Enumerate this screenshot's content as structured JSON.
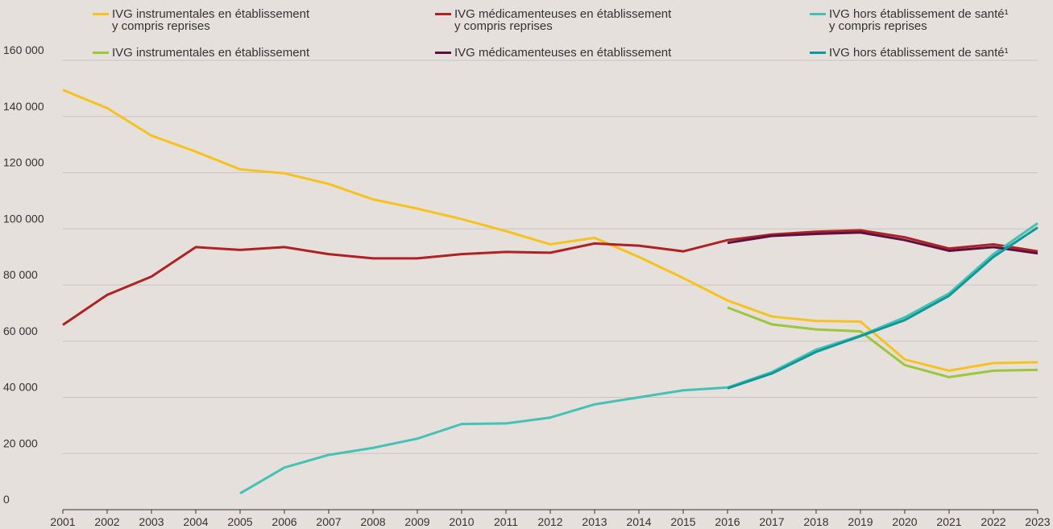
{
  "chart_data": {
    "type": "line",
    "categories": [
      "2001",
      "2002",
      "2003",
      "2004",
      "2005",
      "2006",
      "2007",
      "2008",
      "2009",
      "2010",
      "2011",
      "2012",
      "2013",
      "2014",
      "2015",
      "2016",
      "2017",
      "2018",
      "2019",
      "2020",
      "2021",
      "2022",
      "2023"
    ],
    "ylim": [
      0,
      160000
    ],
    "yticks": [
      0,
      {
        "value": 20000,
        "label": "20 000"
      },
      {
        "value": 40000,
        "label": "40 000"
      },
      {
        "value": 60000,
        "label": "60 000"
      },
      {
        "value": 80000,
        "label": "80 000"
      },
      {
        "value": 100000,
        "label": "100 000"
      },
      {
        "value": 120000,
        "label": "120 000"
      },
      {
        "value": 140000,
        "label": "140 000"
      },
      {
        "value": 160000,
        "label": "160 000"
      }
    ],
    "grid": true,
    "series": [
      {
        "name": "IVG instrumentales en établissement\ny compris reprises",
        "color": "#f7c11e",
        "values": [
          149500,
          143000,
          133200,
          127500,
          121200,
          119800,
          116000,
          110500,
          107200,
          103500,
          99200,
          94500,
          96800,
          90000,
          82500,
          74500,
          68800,
          67200,
          67000,
          53500,
          49500,
          52200,
          52500
        ]
      },
      {
        "name": "IVG médicamenteuses en établissement\ny compris reprises",
        "color": "#b02126",
        "values": [
          65800,
          76500,
          83000,
          93500,
          92500,
          93500,
          91000,
          89500,
          89500,
          91000,
          91800,
          91500,
          94800,
          94000,
          92000,
          96000,
          98000,
          99000,
          99500,
          97000,
          93000,
          94500,
          92000
        ]
      },
      {
        "name": "IVG hors établissement de santé¹\ny compris reprises",
        "color": "#45c1b5",
        "values": [
          null,
          null,
          null,
          null,
          5800,
          15000,
          19500,
          22000,
          25300,
          30500,
          30700,
          32800,
          37500,
          40000,
          42500,
          43500,
          49000,
          57000,
          62000,
          68500,
          77000,
          91000,
          102000
        ]
      },
      {
        "name": "IVG instrumentales en établissement",
        "color": "#9cc63b",
        "values": [
          null,
          null,
          null,
          null,
          null,
          null,
          null,
          null,
          null,
          null,
          null,
          null,
          null,
          null,
          null,
          72000,
          66000,
          64200,
          63500,
          51500,
          47200,
          49500,
          49800
        ]
      },
      {
        "name": "IVG médicamenteuses en établissement",
        "color": "#5a1340",
        "values": [
          null,
          null,
          null,
          null,
          null,
          null,
          null,
          null,
          null,
          null,
          null,
          null,
          null,
          null,
          null,
          95000,
          97500,
          98200,
          98700,
          96000,
          92200,
          93500,
          91300
        ]
      },
      {
        "name": "IVG hors établissement de santé¹",
        "color": "#10979a",
        "values": [
          null,
          null,
          null,
          null,
          null,
          null,
          null,
          null,
          null,
          null,
          null,
          null,
          null,
          null,
          null,
          43200,
          48500,
          56200,
          61800,
          67500,
          76200,
          90000,
          100500
        ]
      }
    ]
  }
}
